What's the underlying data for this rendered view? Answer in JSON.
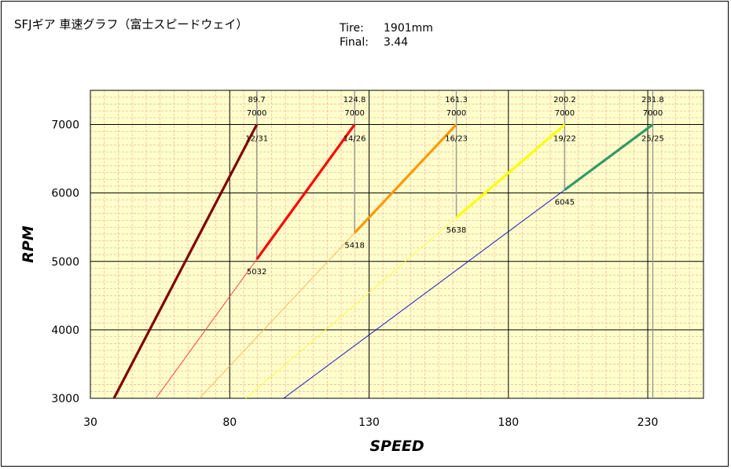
{
  "title": "SFJギア 車速グラフ（富士スピードウェイ）",
  "specs": {
    "tire_label": "Tire:",
    "tire_value": "1901mm",
    "final_label": "Final:",
    "final_value": "3.44"
  },
  "chart_data": {
    "type": "line",
    "xlabel": "SPEED",
    "ylabel": "RPM",
    "xlim": [
      30,
      250
    ],
    "ylim": [
      3000,
      7500
    ],
    "xticks": [
      30,
      80,
      130,
      180,
      230
    ],
    "yticks": [
      3000,
      4000,
      5000,
      6000,
      7000
    ],
    "grid": true,
    "minor_grid": true,
    "colors": {
      "background": "#ffffcc",
      "major_grid": "#000000",
      "minor_grid": "#f0b9a0"
    },
    "series": [
      {
        "ratio": "12/31",
        "top_speed": 89.7,
        "max_rpm": 7000,
        "shift_to_rpm": 5032,
        "color": "#800000",
        "thin_color": "#800000"
      },
      {
        "ratio": "14/26",
        "top_speed": 124.8,
        "max_rpm": 7000,
        "shift_from_rpm": 5032,
        "shift_to_rpm": 5418,
        "color": "#ff0000",
        "thin_color": "#ff3333"
      },
      {
        "ratio": "16/23",
        "top_speed": 161.3,
        "max_rpm": 7000,
        "shift_from_rpm": 5418,
        "shift_to_rpm": 5638,
        "color": "#ff9900",
        "thin_color": "#ffb24d"
      },
      {
        "ratio": "19/22",
        "top_speed": 200.2,
        "max_rpm": 7000,
        "shift_from_rpm": 5638,
        "shift_to_rpm": 6045,
        "color": "#ffff00",
        "thin_color": "#ffff33"
      },
      {
        "ratio": "25/25",
        "top_speed": 231.8,
        "max_rpm": 7000,
        "shift_from_rpm": 6045,
        "color": "#339966",
        "thin_color": "#0000cc"
      }
    ],
    "annotations": [
      {
        "speed_label": "89.7",
        "rpm_label": "7000",
        "ratio_label": "12/31",
        "shift_label": "5032"
      },
      {
        "speed_label": "124.8",
        "rpm_label": "7000",
        "ratio_label": "14/26",
        "shift_label": "5418"
      },
      {
        "speed_label": "161.3",
        "rpm_label": "7000",
        "ratio_label": "16/23",
        "shift_label": "5638"
      },
      {
        "speed_label": "200.2",
        "rpm_label": "7000",
        "ratio_label": "19/22",
        "shift_label": "6045"
      },
      {
        "speed_label": "231.8",
        "rpm_label": "7000",
        "ratio_label": "25/25",
        "shift_label": ""
      }
    ]
  }
}
